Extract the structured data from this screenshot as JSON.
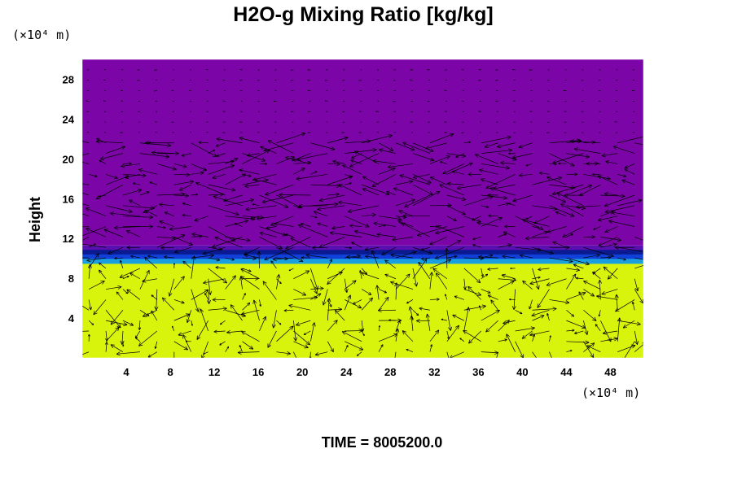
{
  "chart_data": {
    "type": "heatmap",
    "title": "H2O-g Mixing Ratio [kg/kg]",
    "ylabel": "Height",
    "x_unit": "(×10⁴ m)",
    "y_unit": "(×10⁴ m)",
    "xlim": [
      0,
      51
    ],
    "ylim": [
      0,
      30
    ],
    "x_ticks": [
      4,
      8,
      12,
      16,
      20,
      24,
      28,
      32,
      36,
      40,
      44,
      48
    ],
    "y_ticks": [
      4,
      8,
      12,
      16,
      20,
      24,
      28
    ],
    "time_label": "TIME = 8005200.0",
    "colors": {
      "moist": "#d8f40c",
      "dry": "#7c05a8",
      "transition": [
        "#1a9fe0",
        "#1040d8",
        "#0a1a90",
        "#5a10b0"
      ],
      "arrows": "#000000"
    },
    "layers": [
      {
        "region": "lower",
        "y_range": [
          0,
          9.5
        ],
        "color": "moist"
      },
      {
        "region": "transition",
        "y_range": [
          9.5,
          11.3
        ],
        "color": "transition"
      },
      {
        "region": "upper",
        "y_range": [
          11.3,
          30
        ],
        "color": "dry"
      }
    ],
    "vector_field": true
  }
}
